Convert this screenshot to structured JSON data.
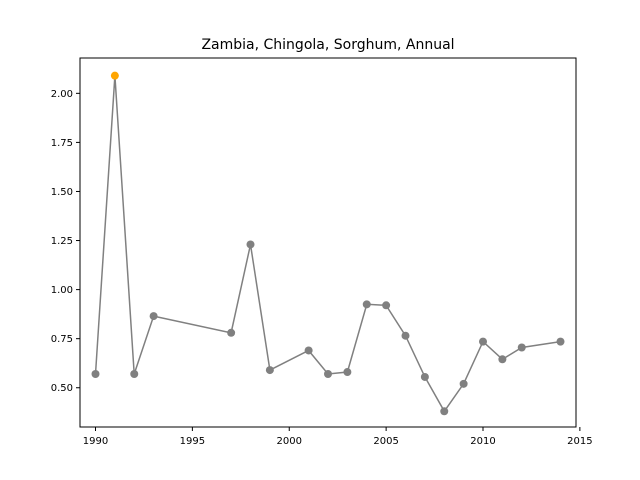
{
  "chart_data": {
    "type": "line",
    "title": "Zambia, Chingola, Sorghum, Annual",
    "xlabel": "",
    "ylabel": "",
    "xlim": [
      1989.2,
      2014.8
    ],
    "ylim": [
      0.3,
      2.18
    ],
    "x_ticks": [
      "1990",
      "1995",
      "2000",
      "2005",
      "2010",
      "2015"
    ],
    "y_ticks": [
      "0.50",
      "0.75",
      "1.00",
      "1.25",
      "1.50",
      "1.75",
      "2.00"
    ],
    "grid": false,
    "line_color": "#808080",
    "highlight_color": "#FFA500",
    "highlight_year": 1991,
    "x": [
      1990,
      1991,
      1992,
      1993,
      1997,
      1998,
      1999,
      2001,
      2002,
      2003,
      2004,
      2005,
      2006,
      2007,
      2008,
      2009,
      2010,
      2011,
      2012,
      2014
    ],
    "values": [
      0.57,
      2.09,
      0.57,
      0.865,
      0.78,
      1.23,
      0.59,
      0.69,
      0.57,
      0.58,
      0.925,
      0.92,
      0.765,
      0.555,
      0.38,
      0.52,
      0.735,
      0.645,
      0.705,
      0.735
    ]
  }
}
